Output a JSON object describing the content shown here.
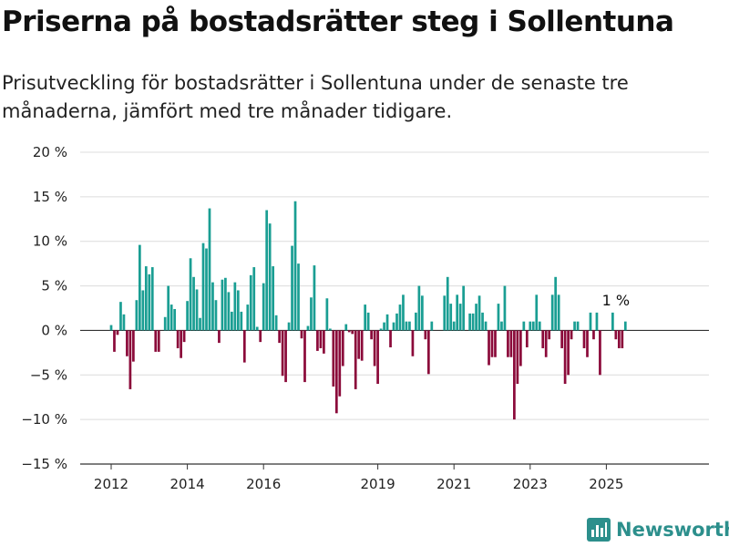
{
  "header": {
    "title": "Priserna på bostadsrätter steg i Sollentuna",
    "subtitle": "Prisutveckling för bostadsrätter i Sollentuna under de senaste tre månaderna, jämfört med tre månader tidigare."
  },
  "brand": {
    "name": "Newsworthy",
    "logo_icon": "bar-chart-logo-icon"
  },
  "chart_data": {
    "type": "bar",
    "title": "",
    "xlabel": "",
    "ylabel": "",
    "ylim": [
      -15,
      20
    ],
    "y_ticks": [
      20,
      15,
      10,
      5,
      0,
      -5,
      -10,
      -15
    ],
    "y_tick_labels": [
      "20 %",
      "15 %",
      "10 %",
      "5 %",
      "0 %",
      "−5 %",
      "−10 %",
      "−15 %"
    ],
    "x_start": "2012-01",
    "x_ticks": [
      {
        "label": "2012",
        "date": "2012-01"
      },
      {
        "label": "2014",
        "date": "2014-01"
      },
      {
        "label": "2016",
        "date": "2016-01"
      },
      {
        "label": "2019",
        "date": "2019-01"
      },
      {
        "label": "2021",
        "date": "2021-01"
      },
      {
        "label": "2023",
        "date": "2023-01"
      },
      {
        "label": "2025",
        "date": "2025-01"
      }
    ],
    "positive_color": "#1a9e93",
    "negative_color": "#8b0a3a",
    "grid": true,
    "annotation": {
      "text": "1 %",
      "date": "2025-04"
    },
    "series": [
      {
        "values": [
          0.6,
          -2.4,
          -0.5,
          3.2,
          1.8,
          -2.9,
          -6.6,
          -3.5,
          3.4,
          9.6,
          4.5,
          7.2,
          6.3,
          7.1,
          -2.4,
          -2.4,
          0,
          1.5,
          5.0,
          2.9,
          2.4,
          -2.0,
          -3.1,
          -1.3,
          3.3,
          8.1,
          6.0,
          4.6,
          1.4,
          9.8,
          9.2,
          13.7,
          5.4,
          3.4,
          -1.4,
          5.7,
          5.9,
          4.3,
          2.1,
          5.4,
          4.5,
          2.1,
          -3.6,
          2.9,
          6.2,
          7.1,
          0.4,
          -1.3,
          5.3,
          13.5,
          12.0,
          7.2,
          1.7,
          -1.4,
          -5.1,
          -5.8,
          0.9,
          9.5,
          14.5,
          7.5,
          -0.9,
          -5.8,
          0.5,
          3.7,
          7.3,
          -2.3,
          -2.0,
          -2.6,
          3.6,
          0.2,
          -6.3,
          -9.3,
          -7.4,
          -4.0,
          0.7,
          -0.2,
          -0.4,
          -6.6,
          -3.2,
          -3.4,
          2.9,
          2.0,
          -1.0,
          -4.0,
          -6.0,
          0.2,
          0.9,
          1.8,
          -1.9,
          0.9,
          1.9,
          2.9,
          4.0,
          1.0,
          1.0,
          -2.9,
          2.0,
          5.0,
          3.9,
          -1.0,
          -4.9,
          1.0,
          0,
          0,
          0,
          3.9,
          6.0,
          3.0,
          1.0,
          4.0,
          3.0,
          5.0,
          0,
          1.9,
          1.9,
          3.0,
          3.9,
          2.0,
          1.0,
          -3.9,
          -3.0,
          -3.0,
          3.0,
          1.0,
          5.0,
          -3.0,
          -3.0,
          -10.0,
          -6.0,
          -4.0,
          1.0,
          -1.9,
          1.0,
          1.0,
          4.0,
          1.0,
          -2.0,
          -3.0,
          -1.0,
          4.0,
          6.0,
          4.0,
          -2.0,
          -6.0,
          -5.0,
          -1.0,
          1.0,
          1.0,
          0,
          -2.0,
          -3.0,
          2.0,
          -1.0,
          2.0,
          -5.0,
          0,
          0,
          0,
          2.0,
          -1.0,
          -2.0,
          -2.0,
          1.0
        ]
      }
    ]
  }
}
